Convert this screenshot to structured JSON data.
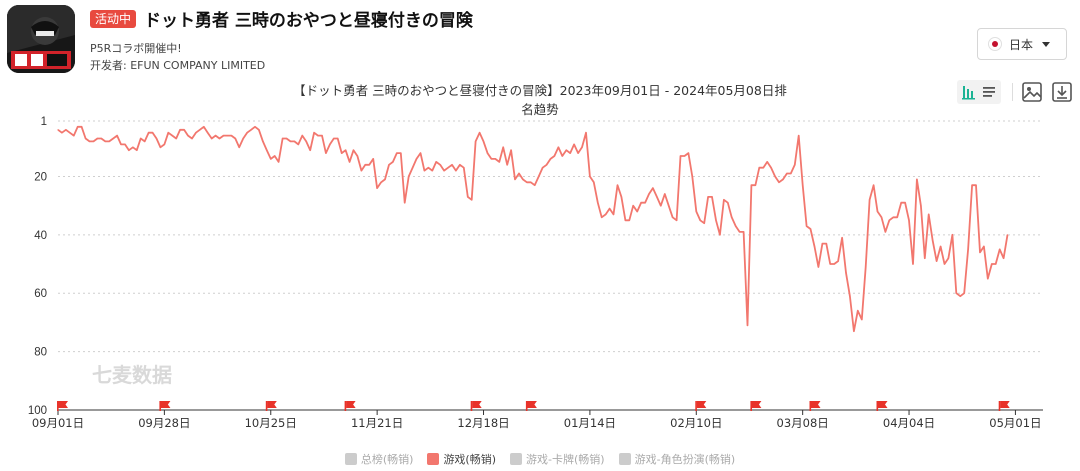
{
  "header": {
    "badge": "活动中",
    "title": "ドット勇者 三時のおやつと昼寝付きの冒険",
    "subtitle": "P5Rコラボ開催中!",
    "developer": "开发者: EFUN COMPANY LIMITED"
  },
  "country": {
    "flag": "japan-flag-icon",
    "label": "日本"
  },
  "toolbar": {
    "icons": [
      "chart-toggle-icon",
      "list-toggle-icon",
      "image-icon",
      "download-icon"
    ]
  },
  "watermark": "七麦数据",
  "colors": {
    "line": "#f2776e",
    "flag": "#e8332a",
    "badge": "#e84a3f",
    "legend_inactive": "#cccccc"
  },
  "chart_data": {
    "type": "line",
    "title": "【ドット勇者 三時のおやつと昼寝付きの冒険】2023年09月01日 - 2024年05月08日排",
    "title_line2": "名趋势",
    "y_reversed": true,
    "ylim": [
      1,
      100
    ],
    "yticks": [
      "1",
      "20",
      "40",
      "60",
      "80",
      "100"
    ],
    "xlim": [
      "2023-09-01",
      "2024-05-08"
    ],
    "xticks": [
      {
        "date": "2023-09-01",
        "label": "09月01日"
      },
      {
        "date": "2023-09-28",
        "label": "09月28日"
      },
      {
        "date": "2023-10-25",
        "label": "10月25日"
      },
      {
        "date": "2023-11-21",
        "label": "11月21日"
      },
      {
        "date": "2023-12-18",
        "label": "12月18日"
      },
      {
        "date": "2024-01-14",
        "label": "01月14日"
      },
      {
        "date": "2024-02-10",
        "label": "02月10日"
      },
      {
        "date": "2024-03-08",
        "label": "03月08日"
      },
      {
        "date": "2024-04-04",
        "label": "04月04日"
      },
      {
        "date": "2024-05-01",
        "label": "05月01日"
      }
    ],
    "event_flags": [
      "2023-09-01",
      "2023-09-27",
      "2023-10-24",
      "2023-11-13",
      "2023-12-15",
      "2023-12-29",
      "2024-02-10",
      "2024-02-24",
      "2024-03-10",
      "2024-03-27",
      "2024-04-27"
    ],
    "legend": [
      {
        "name": "总榜(畅销)",
        "active": false
      },
      {
        "name": "游戏(畅销)",
        "active": true
      },
      {
        "name": "游戏-卡牌(畅销)",
        "active": false
      },
      {
        "name": "游戏-角色扮演(畅销)",
        "active": false
      }
    ],
    "series": [
      {
        "name": "游戏(畅销)",
        "points": [
          [
            "2023-09-01",
            4
          ],
          [
            "2023-09-02",
            5
          ],
          [
            "2023-09-03",
            4
          ],
          [
            "2023-09-04",
            5
          ],
          [
            "2023-09-05",
            6
          ],
          [
            "2023-09-06",
            3
          ],
          [
            "2023-09-07",
            3
          ],
          [
            "2023-09-08",
            7
          ],
          [
            "2023-09-09",
            8
          ],
          [
            "2023-09-10",
            8
          ],
          [
            "2023-09-11",
            7
          ],
          [
            "2023-09-12",
            7
          ],
          [
            "2023-09-13",
            8
          ],
          [
            "2023-09-14",
            8
          ],
          [
            "2023-09-15",
            7
          ],
          [
            "2023-09-16",
            6
          ],
          [
            "2023-09-17",
            9
          ],
          [
            "2023-09-18",
            9
          ],
          [
            "2023-09-19",
            11
          ],
          [
            "2023-09-20",
            10
          ],
          [
            "2023-09-21",
            11
          ],
          [
            "2023-09-22",
            7
          ],
          [
            "2023-09-23",
            8
          ],
          [
            "2023-09-24",
            5
          ],
          [
            "2023-09-25",
            5
          ],
          [
            "2023-09-26",
            7
          ],
          [
            "2023-09-27",
            10
          ],
          [
            "2023-09-28",
            9
          ],
          [
            "2023-09-29",
            5
          ],
          [
            "2023-09-30",
            6
          ],
          [
            "2023-10-01",
            7
          ],
          [
            "2023-10-02",
            4
          ],
          [
            "2023-10-03",
            4
          ],
          [
            "2023-10-04",
            6
          ],
          [
            "2023-10-05",
            7
          ],
          [
            "2023-10-06",
            5
          ],
          [
            "2023-10-07",
            4
          ],
          [
            "2023-10-08",
            3
          ],
          [
            "2023-10-09",
            5
          ],
          [
            "2023-10-10",
            7
          ],
          [
            "2023-10-11",
            6
          ],
          [
            "2023-10-12",
            7
          ],
          [
            "2023-10-13",
            6
          ],
          [
            "2023-10-14",
            6
          ],
          [
            "2023-10-15",
            6
          ],
          [
            "2023-10-16",
            7
          ],
          [
            "2023-10-17",
            10
          ],
          [
            "2023-10-18",
            7
          ],
          [
            "2023-10-19",
            5
          ],
          [
            "2023-10-20",
            4
          ],
          [
            "2023-10-21",
            3
          ],
          [
            "2023-10-22",
            4
          ],
          [
            "2023-10-23",
            8
          ],
          [
            "2023-10-24",
            11
          ],
          [
            "2023-10-25",
            14
          ],
          [
            "2023-10-26",
            13
          ],
          [
            "2023-10-27",
            15
          ],
          [
            "2023-10-28",
            7
          ],
          [
            "2023-10-29",
            7
          ],
          [
            "2023-10-30",
            8
          ],
          [
            "2023-10-31",
            8
          ],
          [
            "2023-11-01",
            9
          ],
          [
            "2023-11-02",
            6
          ],
          [
            "2023-11-03",
            8
          ],
          [
            "2023-11-04",
            11
          ],
          [
            "2023-11-05",
            5
          ],
          [
            "2023-11-06",
            6
          ],
          [
            "2023-11-07",
            6
          ],
          [
            "2023-11-08",
            12
          ],
          [
            "2023-11-09",
            9
          ],
          [
            "2023-11-10",
            7
          ],
          [
            "2023-11-11",
            7
          ],
          [
            "2023-11-12",
            12
          ],
          [
            "2023-11-13",
            11
          ],
          [
            "2023-11-14",
            15
          ],
          [
            "2023-11-15",
            11
          ],
          [
            "2023-11-16",
            13
          ],
          [
            "2023-11-17",
            18
          ],
          [
            "2023-11-18",
            16
          ],
          [
            "2023-11-19",
            16
          ],
          [
            "2023-11-20",
            14
          ],
          [
            "2023-11-21",
            24
          ],
          [
            "2023-11-22",
            22
          ],
          [
            "2023-11-23",
            21
          ],
          [
            "2023-11-24",
            16
          ],
          [
            "2023-11-25",
            15
          ],
          [
            "2023-11-26",
            12
          ],
          [
            "2023-11-27",
            12
          ],
          [
            "2023-11-28",
            29
          ],
          [
            "2023-11-29",
            20
          ],
          [
            "2023-11-30",
            17
          ],
          [
            "2023-12-01",
            14
          ],
          [
            "2023-12-02",
            12
          ],
          [
            "2023-12-03",
            18
          ],
          [
            "2023-12-04",
            17
          ],
          [
            "2023-12-05",
            18
          ],
          [
            "2023-12-06",
            15
          ],
          [
            "2023-12-07",
            16
          ],
          [
            "2023-12-08",
            18
          ],
          [
            "2023-12-09",
            17
          ],
          [
            "2023-12-10",
            16
          ],
          [
            "2023-12-11",
            18
          ],
          [
            "2023-12-12",
            16
          ],
          [
            "2023-12-13",
            17
          ],
          [
            "2023-12-14",
            27
          ],
          [
            "2023-12-15",
            28
          ],
          [
            "2023-12-16",
            8
          ],
          [
            "2023-12-17",
            5
          ],
          [
            "2023-12-18",
            8
          ],
          [
            "2023-12-19",
            12
          ],
          [
            "2023-12-20",
            14
          ],
          [
            "2023-12-21",
            14
          ],
          [
            "2023-12-22",
            15
          ],
          [
            "2023-12-23",
            10
          ],
          [
            "2023-12-24",
            16
          ],
          [
            "2023-12-25",
            11
          ],
          [
            "2023-12-26",
            21
          ],
          [
            "2023-12-27",
            19
          ],
          [
            "2023-12-28",
            21
          ],
          [
            "2023-12-29",
            22
          ],
          [
            "2023-12-30",
            22
          ],
          [
            "2023-12-31",
            23
          ],
          [
            "2024-01-01",
            20
          ],
          [
            "2024-01-02",
            17
          ],
          [
            "2024-01-03",
            16
          ],
          [
            "2024-01-04",
            14
          ],
          [
            "2024-01-05",
            13
          ],
          [
            "2024-01-06",
            10
          ],
          [
            "2024-01-07",
            13
          ],
          [
            "2024-01-08",
            11
          ],
          [
            "2024-01-09",
            12
          ],
          [
            "2024-01-10",
            9
          ],
          [
            "2024-01-11",
            12
          ],
          [
            "2024-01-12",
            10
          ],
          [
            "2024-01-13",
            5
          ],
          [
            "2024-01-14",
            20
          ],
          [
            "2024-01-15",
            22
          ],
          [
            "2024-01-16",
            29
          ],
          [
            "2024-01-17",
            34
          ],
          [
            "2024-01-18",
            33
          ],
          [
            "2024-01-19",
            31
          ],
          [
            "2024-01-20",
            33
          ],
          [
            "2024-01-21",
            23
          ],
          [
            "2024-01-22",
            27
          ],
          [
            "2024-01-23",
            35
          ],
          [
            "2024-01-24",
            35
          ],
          [
            "2024-01-25",
            30
          ],
          [
            "2024-01-26",
            32
          ],
          [
            "2024-01-27",
            29
          ],
          [
            "2024-01-28",
            29
          ],
          [
            "2024-01-29",
            26
          ],
          [
            "2024-01-30",
            24
          ],
          [
            "2024-01-31",
            27
          ],
          [
            "2024-02-01",
            30
          ],
          [
            "2024-02-02",
            26
          ],
          [
            "2024-02-03",
            30
          ],
          [
            "2024-02-04",
            34
          ],
          [
            "2024-02-05",
            35
          ],
          [
            "2024-02-06",
            13
          ],
          [
            "2024-02-07",
            13
          ],
          [
            "2024-02-08",
            12
          ],
          [
            "2024-02-09",
            20
          ],
          [
            "2024-02-10",
            32
          ],
          [
            "2024-02-11",
            35
          ],
          [
            "2024-02-12",
            36
          ],
          [
            "2024-02-13",
            27
          ],
          [
            "2024-02-14",
            27
          ],
          [
            "2024-02-15",
            35
          ],
          [
            "2024-02-16",
            40
          ],
          [
            "2024-02-17",
            28
          ],
          [
            "2024-02-18",
            29
          ],
          [
            "2024-02-19",
            34
          ],
          [
            "2024-02-20",
            37
          ],
          [
            "2024-02-21",
            39
          ],
          [
            "2024-02-22",
            39
          ],
          [
            "2024-02-23",
            71
          ],
          [
            "2024-02-24",
            23
          ],
          [
            "2024-02-25",
            23
          ],
          [
            "2024-02-26",
            17
          ],
          [
            "2024-02-27",
            17
          ],
          [
            "2024-02-28",
            15
          ],
          [
            "2024-02-29",
            17
          ],
          [
            "2024-03-01",
            20
          ],
          [
            "2024-03-02",
            22
          ],
          [
            "2024-03-03",
            21
          ],
          [
            "2024-03-04",
            19
          ],
          [
            "2024-03-05",
            19
          ],
          [
            "2024-03-06",
            16
          ],
          [
            "2024-03-07",
            6
          ],
          [
            "2024-03-08",
            23
          ],
          [
            "2024-03-09",
            37
          ],
          [
            "2024-03-10",
            38
          ],
          [
            "2024-03-11",
            44
          ],
          [
            "2024-03-12",
            51
          ],
          [
            "2024-03-13",
            43
          ],
          [
            "2024-03-14",
            43
          ],
          [
            "2024-03-15",
            50
          ],
          [
            "2024-03-16",
            50
          ],
          [
            "2024-03-17",
            49
          ],
          [
            "2024-03-18",
            41
          ],
          [
            "2024-03-19",
            53
          ],
          [
            "2024-03-20",
            61
          ],
          [
            "2024-03-21",
            73
          ],
          [
            "2024-03-22",
            66
          ],
          [
            "2024-03-23",
            69
          ],
          [
            "2024-03-24",
            51
          ],
          [
            "2024-03-25",
            28
          ],
          [
            "2024-03-26",
            23
          ],
          [
            "2024-03-27",
            32
          ],
          [
            "2024-03-28",
            34
          ],
          [
            "2024-03-29",
            39
          ],
          [
            "2024-03-30",
            35
          ],
          [
            "2024-03-31",
            34
          ],
          [
            "2024-04-01",
            34
          ],
          [
            "2024-04-02",
            29
          ],
          [
            "2024-04-03",
            29
          ],
          [
            "2024-04-04",
            35
          ],
          [
            "2024-04-05",
            50
          ],
          [
            "2024-04-06",
            21
          ],
          [
            "2024-04-07",
            30
          ],
          [
            "2024-04-08",
            48
          ],
          [
            "2024-04-09",
            33
          ],
          [
            "2024-04-10",
            42
          ],
          [
            "2024-04-11",
            49
          ],
          [
            "2024-04-12",
            44
          ],
          [
            "2024-04-13",
            50
          ],
          [
            "2024-04-14",
            48
          ],
          [
            "2024-04-15",
            40
          ],
          [
            "2024-04-16",
            60
          ],
          [
            "2024-04-17",
            61
          ],
          [
            "2024-04-18",
            60
          ],
          [
            "2024-04-19",
            45
          ],
          [
            "2024-04-20",
            23
          ],
          [
            "2024-04-21",
            23
          ],
          [
            "2024-04-22",
            46
          ],
          [
            "2024-04-23",
            44
          ],
          [
            "2024-04-24",
            55
          ],
          [
            "2024-04-25",
            50
          ],
          [
            "2024-04-26",
            50
          ],
          [
            "2024-04-27",
            45
          ],
          [
            "2024-04-28",
            48
          ],
          [
            "2024-04-29",
            40
          ]
        ]
      }
    ]
  }
}
